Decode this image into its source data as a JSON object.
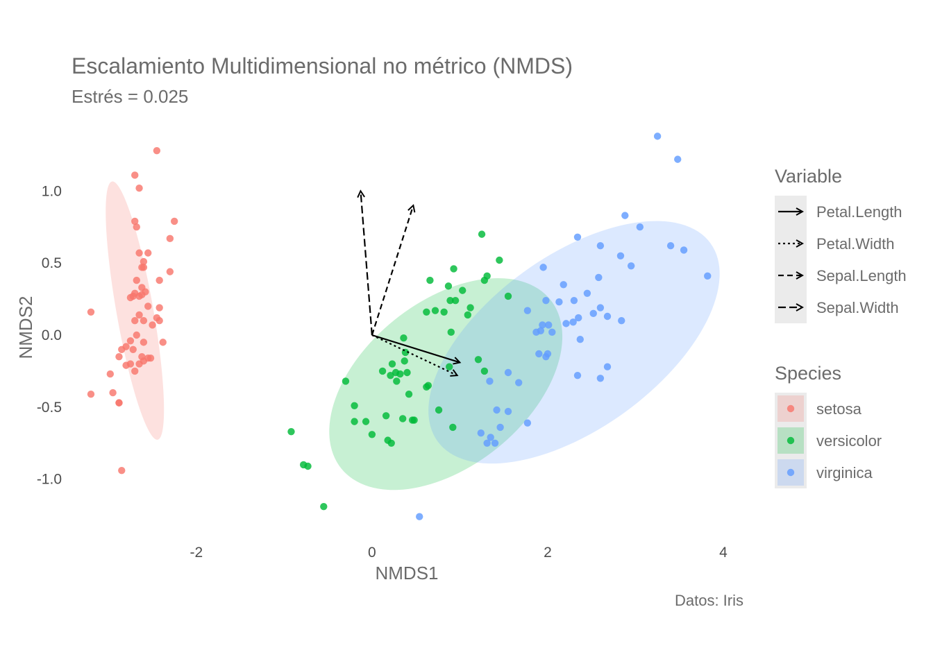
{
  "chart_data": {
    "type": "scatter",
    "title": "Escalamiento Multidimensional no métrico (NMDS)",
    "subtitle": "Estrés = 0.025",
    "caption": "Datos: Iris",
    "xlabel": "NMDS1",
    "ylabel": "NMDS2",
    "xlim": [
      -3.35,
      4.15
    ],
    "ylim": [
      -1.43,
      1.43
    ],
    "x_ticks": [
      -2,
      0,
      2,
      4
    ],
    "y_ticks": [
      -1.0,
      -0.5,
      0.0,
      0.5,
      1.0
    ],
    "x_tick_labels": [
      "-2",
      "0",
      "2",
      "4"
    ],
    "y_tick_labels": [
      "-1.0",
      "-0.5",
      "0.0",
      "0.5",
      "1.0"
    ],
    "grid": false,
    "legend_position": "right",
    "variable_legend": {
      "title": "Variable",
      "entries": [
        {
          "name": "Petal.Length",
          "dash": "solid"
        },
        {
          "name": "Petal.Width",
          "dash": "dotted"
        },
        {
          "name": "Sepal.Length",
          "dash": "dashed"
        },
        {
          "name": "Sepal.Width",
          "dash": "longdash"
        }
      ]
    },
    "species_legend": {
      "title": "Species"
    },
    "vectors": [
      {
        "name": "Petal.Length",
        "x0": 0,
        "y0": 0,
        "x1": 1.0,
        "y1": -0.19,
        "dash": "solid"
      },
      {
        "name": "Petal.Width",
        "x0": 0,
        "y0": 0,
        "x1": 0.97,
        "y1": -0.28,
        "dash": "dotted"
      },
      {
        "name": "Sepal.Length",
        "x0": 0,
        "y0": 0,
        "x1": 0.47,
        "y1": 0.9,
        "dash": "dashed"
      },
      {
        "name": "Sepal.Width",
        "x0": 0,
        "y0": 0,
        "x1": -0.13,
        "y1": 1.0,
        "dash": "longdash"
      }
    ],
    "series": [
      {
        "name": "setosa",
        "color": "#F8766D",
        "ellipse": {
          "cx": -2.7,
          "cy": 0.17,
          "rx": 0.21,
          "ry": 0.91,
          "angle_deg": 10
        },
        "x": [
          -2.45,
          -2.7,
          -2.65,
          -3.2,
          -3.2,
          -2.85,
          -2.7,
          -2.68,
          -2.6,
          -2.65,
          -2.55,
          -2.6,
          -2.62,
          -2.42,
          -2.68,
          -2.62,
          -2.58,
          -2.62,
          -2.72,
          -2.75,
          -2.7,
          -2.65,
          -2.55,
          -2.42,
          -2.45,
          -2.65,
          -2.6,
          -2.7,
          -2.5,
          -2.42,
          -2.68,
          -2.75,
          -2.6,
          -2.8,
          -2.72,
          -2.62,
          -2.55,
          -2.38,
          -2.85,
          -2.88,
          -2.75,
          -2.65,
          -2.8,
          -2.6,
          -2.52,
          -2.7,
          -2.98,
          -2.95,
          -2.88,
          -2.88,
          -2.25,
          -2.3,
          -2.3
        ],
        "y": [
          1.28,
          1.11,
          1.02,
          0.16,
          -0.41,
          -0.94,
          0.79,
          0.75,
          0.51,
          0.57,
          0.57,
          0.47,
          0.47,
          0.38,
          0.38,
          0.33,
          0.3,
          0.28,
          0.27,
          0.26,
          0.29,
          0.27,
          0.2,
          0.19,
          0.12,
          0.14,
          0.1,
          0.1,
          0.07,
          0.1,
          0.0,
          -0.04,
          -0.05,
          -0.08,
          -0.1,
          -0.15,
          -0.16,
          -0.05,
          -0.1,
          -0.15,
          -0.2,
          -0.2,
          -0.21,
          -0.18,
          -0.16,
          -0.25,
          -0.27,
          -0.4,
          -0.47,
          -0.47,
          0.79,
          0.67,
          0.44
        ]
      },
      {
        "name": "versicolor",
        "color": "#00BA38",
        "ellipse": {
          "cx": 0.84,
          "cy": -0.34,
          "rx": 1.53,
          "ry": 0.57,
          "angle_deg": 39
        },
        "x": [
          -0.92,
          -0.73,
          -0.78,
          -0.55,
          -0.3,
          -0.2,
          -0.07,
          0.12,
          0.16,
          0.21,
          0.27,
          0.36,
          0.42,
          0.37,
          0.32,
          0.18,
          0.22,
          0.23,
          0.28,
          0.38,
          0.46,
          0.62,
          0.66,
          0.72,
          0.64,
          0.82,
          0.89,
          0.87,
          0.93,
          0.95,
          0.9,
          1.03,
          1.09,
          1.12,
          1.28,
          1.31,
          1.45,
          1.55,
          1.21,
          1.28,
          0.92,
          0.88,
          0.76,
          0.4,
          0.35,
          0.48,
          0.62,
          0.0,
          -0.2,
          1.25
        ],
        "y": [
          -0.67,
          -0.91,
          -0.9,
          -1.19,
          -0.32,
          -0.6,
          -0.6,
          -0.25,
          -0.56,
          -0.28,
          -0.26,
          -0.02,
          -0.41,
          -0.18,
          -0.27,
          -0.73,
          -0.75,
          -0.2,
          -0.32,
          -0.12,
          -0.59,
          0.16,
          0.38,
          0.17,
          -0.35,
          0.16,
          0.24,
          0.34,
          0.46,
          0.24,
          0.02,
          0.31,
          0.14,
          0.19,
          0.38,
          0.41,
          0.52,
          0.27,
          -0.17,
          -0.25,
          -0.64,
          -0.22,
          -0.52,
          -0.26,
          -0.58,
          -0.59,
          -0.36,
          -0.69,
          -0.49,
          0.7
        ]
      },
      {
        "name": "virginica",
        "color": "#619CFF",
        "ellipse": {
          "cx": 2.3,
          "cy": -0.05,
          "rx": 1.92,
          "ry": 0.6,
          "angle_deg": 36
        },
        "x": [
          3.25,
          3.48,
          2.88,
          3.05,
          2.34,
          2.6,
          2.83,
          2.95,
          3.4,
          3.55,
          3.82,
          1.95,
          1.98,
          2.13,
          2.18,
          2.3,
          2.45,
          2.58,
          2.6,
          2.35,
          2.52,
          2.68,
          2.84,
          1.77,
          2.01,
          1.87,
          1.94,
          1.92,
          2.05,
          2.21,
          2.29,
          2.37,
          2.68,
          1.98,
          1.9,
          2.0,
          2.34,
          2.6,
          1.55,
          1.67,
          1.77,
          1.55,
          1.34,
          1.42,
          1.35,
          1.46,
          1.31,
          1.4,
          1.24,
          0.54
        ],
        "y": [
          1.38,
          1.22,
          0.83,
          0.75,
          0.68,
          0.62,
          0.55,
          0.48,
          0.62,
          0.59,
          0.41,
          0.47,
          0.24,
          0.23,
          0.35,
          0.24,
          0.29,
          0.4,
          0.19,
          0.12,
          0.15,
          0.13,
          0.1,
          0.17,
          0.07,
          0.02,
          0.07,
          0.03,
          0.02,
          0.08,
          0.09,
          -0.03,
          -0.22,
          -0.15,
          -0.13,
          -0.13,
          -0.28,
          -0.3,
          -0.26,
          -0.33,
          -0.61,
          -0.53,
          -0.32,
          -0.52,
          -0.71,
          -0.64,
          -0.75,
          -0.75,
          -0.68,
          -1.26
        ]
      }
    ]
  }
}
